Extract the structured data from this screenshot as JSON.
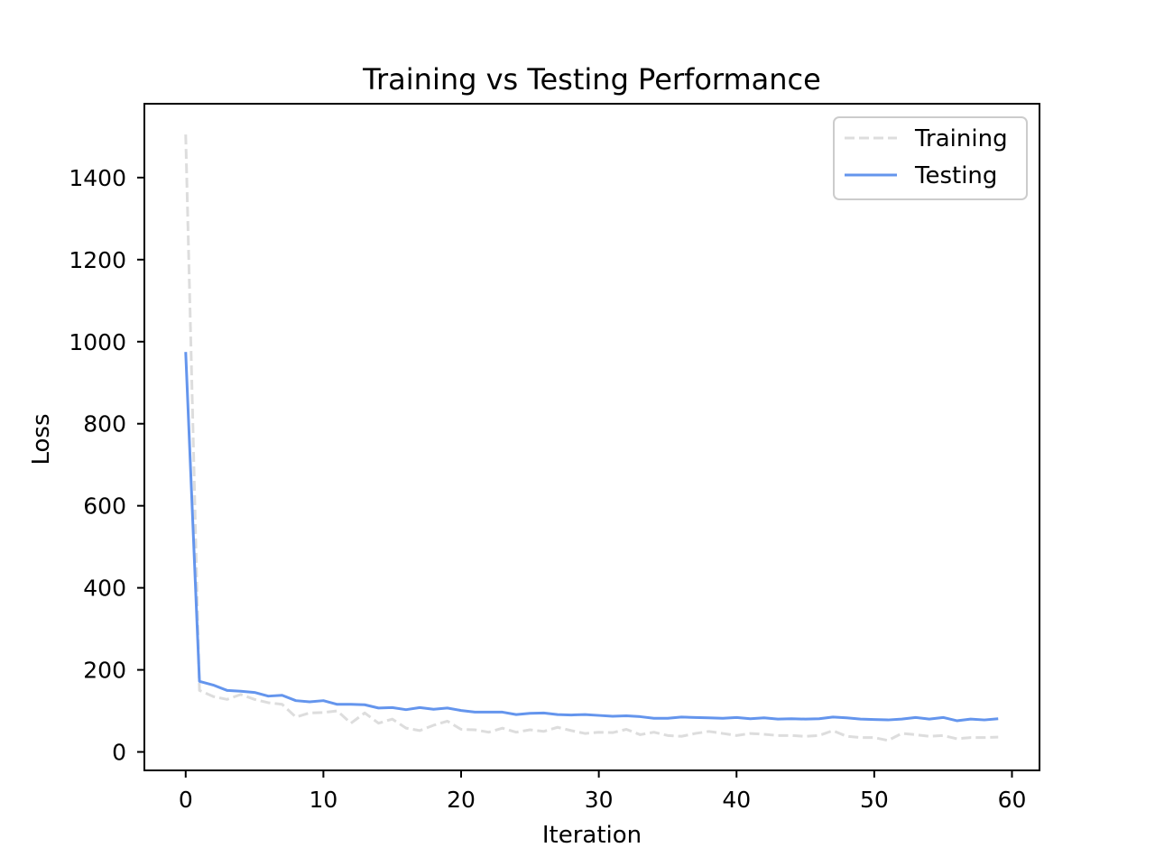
{
  "chart_data": {
    "type": "line",
    "title": "Training vs Testing Performance",
    "xlabel": "Iteration",
    "ylabel": "Loss",
    "xlim": [
      -3,
      62
    ],
    "ylim": [
      -45,
      1580
    ],
    "xticks": [
      0,
      10,
      20,
      30,
      40,
      50,
      60
    ],
    "yticks": [
      0,
      200,
      400,
      600,
      800,
      1000,
      1200,
      1400
    ],
    "grid": false,
    "legend_position": "top-right",
    "series": [
      {
        "name": "Training",
        "color": "#dddddd",
        "style": "dashed",
        "x": [
          0,
          1,
          2,
          3,
          4,
          5,
          6,
          7,
          8,
          9,
          10,
          11,
          12,
          13,
          14,
          15,
          16,
          17,
          18,
          19,
          20,
          21,
          22,
          23,
          24,
          25,
          26,
          27,
          28,
          29,
          30,
          31,
          32,
          33,
          34,
          35,
          36,
          37,
          38,
          39,
          40,
          41,
          42,
          43,
          44,
          45,
          46,
          47,
          48,
          49,
          50,
          51,
          52,
          53,
          54,
          55,
          56,
          57,
          58,
          59
        ],
        "values": [
          1505,
          150,
          135,
          128,
          140,
          128,
          120,
          116,
          85,
          95,
          96,
          100,
          70,
          95,
          70,
          80,
          58,
          52,
          65,
          75,
          55,
          54,
          48,
          58,
          48,
          54,
          50,
          60,
          52,
          45,
          48,
          47,
          55,
          42,
          48,
          40,
          38,
          45,
          50,
          45,
          40,
          45,
          43,
          40,
          40,
          38,
          40,
          52,
          38,
          35,
          35,
          28,
          45,
          42,
          38,
          40,
          32,
          35,
          35,
          36
        ]
      },
      {
        "name": "Testing",
        "color": "#6495ed",
        "style": "solid",
        "x": [
          0,
          1,
          2,
          3,
          4,
          5,
          6,
          7,
          8,
          9,
          10,
          11,
          12,
          13,
          14,
          15,
          16,
          17,
          18,
          19,
          20,
          21,
          22,
          23,
          24,
          25,
          26,
          27,
          28,
          29,
          30,
          31,
          32,
          33,
          34,
          35,
          36,
          37,
          38,
          39,
          40,
          41,
          42,
          43,
          44,
          45,
          46,
          47,
          48,
          49,
          50,
          51,
          52,
          53,
          54,
          55,
          56,
          57,
          58,
          59
        ],
        "values": [
          975,
          172,
          163,
          150,
          148,
          145,
          136,
          138,
          125,
          122,
          125,
          116,
          116,
          115,
          107,
          108,
          103,
          108,
          104,
          107,
          101,
          97,
          97,
          97,
          91,
          94,
          95,
          91,
          90,
          91,
          89,
          87,
          88,
          86,
          82,
          82,
          85,
          84,
          83,
          82,
          84,
          81,
          83,
          80,
          81,
          80,
          81,
          85,
          83,
          80,
          79,
          78,
          80,
          84,
          80,
          84,
          76,
          80,
          78,
          81
        ]
      }
    ]
  }
}
